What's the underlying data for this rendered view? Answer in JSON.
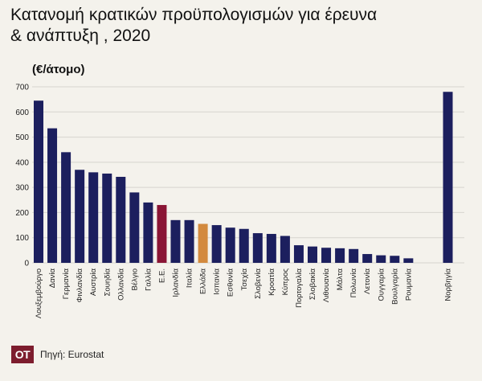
{
  "title_lines": [
    "Κατανομή κρατικών προϋπολογισμών για έρευνα",
    "& ανάπτυξη , 2020"
  ],
  "unit_label": "(€/άτομο)",
  "source": "Πηγή: Eurostat",
  "logo_text": "OT",
  "colors": {
    "default": "#1c1f5e",
    "highlight_eu": "#8a1535",
    "highlight_greece": "#d38a3e",
    "grid": "#d6d4ce",
    "background": "#f4f2ec"
  },
  "chart_data": {
    "type": "bar",
    "categories": [
      "Λουξεμβούργο",
      "Δανία",
      "Γερμανία",
      "Φινλανδία",
      "Αυστρία",
      "Σουηδία",
      "Ολλανδία",
      "Βέλγιο",
      "Γαλλία",
      "Ε.Ε.",
      "Ιρλανδία",
      "Ιταλία",
      "Ελλάδα",
      "Ισπανία",
      "Εσθονία",
      "Τσεχία",
      "Σλοβενία",
      "Κροατία",
      "Κύπρος",
      "Πορτογαλία",
      "Σλοβακία",
      "Λιθουανία",
      "Μάλτα",
      "Πολωνία",
      "Λετονία",
      "Ουγγαρία",
      "Βουλγαρία",
      "Ρουμανία",
      "Νορβηγία"
    ],
    "values": [
      645,
      535,
      440,
      370,
      360,
      355,
      342,
      280,
      240,
      230,
      170,
      170,
      155,
      150,
      140,
      135,
      118,
      115,
      107,
      70,
      65,
      60,
      58,
      55,
      35,
      30,
      28,
      18,
      680
    ],
    "highlights": {
      "Ε.Ε.": "highlight_eu",
      "Ελλάδα": "highlight_greece"
    },
    "ylim": [
      0,
      700
    ],
    "yticks": [
      0,
      100,
      200,
      300,
      400,
      500,
      600,
      700
    ],
    "grid": true,
    "gap_before_last": true
  }
}
